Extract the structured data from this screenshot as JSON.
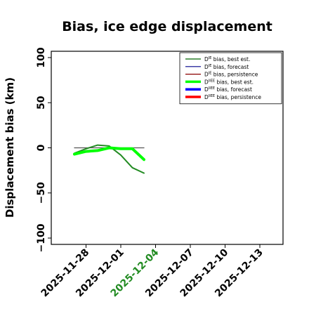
{
  "chart_data": {
    "type": "line",
    "title": "Bias, ice edge displacement",
    "xlabel": "",
    "ylabel": "Displacement bias (km)",
    "ylim": [
      -107,
      107
    ],
    "yticks": [
      -100,
      -50,
      0,
      50,
      100
    ],
    "ytick_labels": [
      "−100",
      "−50",
      "0",
      "50",
      "100"
    ],
    "xlim": [
      "2025-11-25",
      "2025-12-15"
    ],
    "xticks": [
      {
        "date": "2025-11-28",
        "label": "2025-11-28",
        "color": "#000000"
      },
      {
        "date": "2025-12-01",
        "label": "2025-12-01",
        "color": "#000000"
      },
      {
        "date": "2025-12-04",
        "label": "2025-12-04",
        "color": "#228B22"
      },
      {
        "date": "2025-12-07",
        "label": "2025-12-07",
        "color": "#000000"
      },
      {
        "date": "2025-12-10",
        "label": "2025-12-10",
        "color": "#000000"
      },
      {
        "date": "2025-12-13",
        "label": "2025-12-13",
        "color": "#000000"
      }
    ],
    "grid": false,
    "legend_position": "top-right",
    "legend": [
      {
        "base": "D",
        "sup": "IE",
        "text": " bias, best est.",
        "color": "#006400",
        "width": 1.2
      },
      {
        "base": "D",
        "sup": "IE",
        "text": " bias, forecast",
        "color": "#00008B",
        "width": 1.2
      },
      {
        "base": "D",
        "sup": "IE",
        "text": " bias, persistence",
        "color": "#8B0000",
        "width": 1.2
      },
      {
        "base": "D",
        "sup": "IIEE",
        "text": " bias, best est.",
        "color": "#00FF00",
        "width": 3.5
      },
      {
        "base": "D",
        "sup": "IIEE",
        "text": " bias, forecast",
        "color": "#0000FF",
        "width": 3.5
      },
      {
        "base": "D",
        "sup": "IIEE",
        "text": " bias, persistence",
        "color": "#FF0000",
        "width": 3.5
      }
    ],
    "series": [
      {
        "color": "#555555",
        "width": 1.3,
        "x": [
          "2025-11-27",
          "2025-12-03"
        ],
        "y": [
          0,
          0
        ]
      },
      {
        "color": "#228B22",
        "width": 2,
        "x": [
          "2025-11-27",
          "2025-11-28",
          "2025-11-29",
          "2025-11-30",
          "2025-12-01",
          "2025-12-02",
          "2025-12-03"
        ],
        "y": [
          -6,
          -1,
          3,
          2,
          -8,
          -22,
          -28
        ]
      },
      {
        "color": "#00FF00",
        "width": 4,
        "x": [
          "2025-11-27",
          "2025-11-28",
          "2025-11-29",
          "2025-11-30",
          "2025-12-01",
          "2025-12-02",
          "2025-12-03"
        ],
        "y": [
          -7,
          -4,
          -3,
          0,
          -1,
          -1,
          -13
        ]
      }
    ]
  }
}
